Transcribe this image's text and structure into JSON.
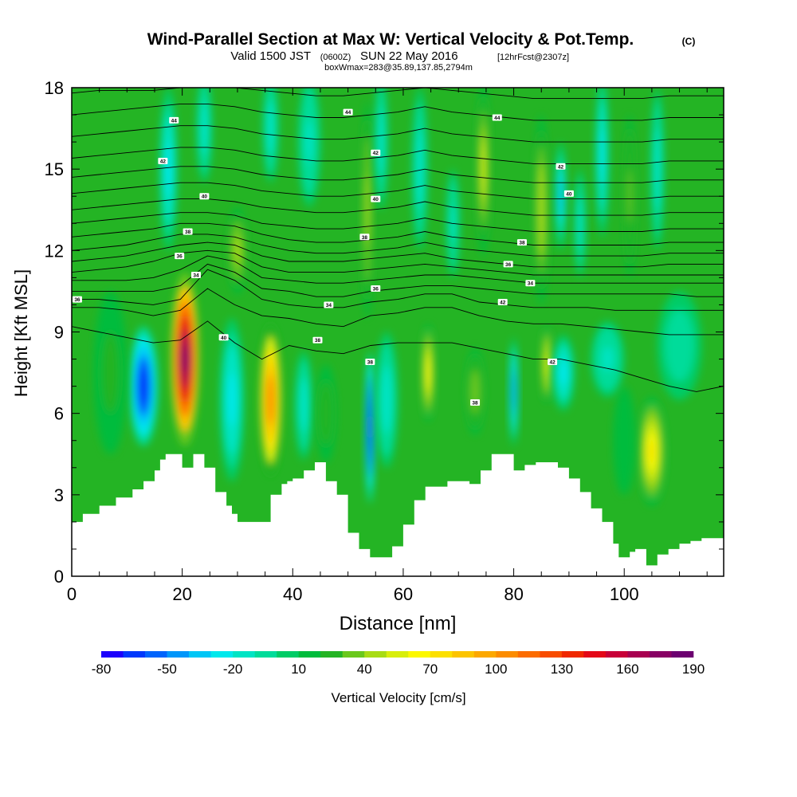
{
  "title": {
    "main": "Wind-Parallel Section at Max W: Vertical Velocity & Pot.Temp.",
    "copyright": "(C)",
    "valid_prefix": "Valid 1500 JST",
    "valid_utc": "(0600Z)",
    "valid_date": "SUN 22 May 2016",
    "forecast": "[12hrFcst@2307z]",
    "subtitle": "boxWmax=283@35.89,137.85,2794m"
  },
  "chart_data": {
    "type": "heatmap",
    "xlabel": "Distance [nm]",
    "ylabel": "Height [Kft MSL]",
    "xlim": [
      0,
      118
    ],
    "ylim": [
      0,
      18
    ],
    "x_ticks": [
      0,
      20,
      40,
      60,
      80,
      100
    ],
    "y_ticks": [
      0,
      3,
      6,
      9,
      12,
      15,
      18
    ],
    "colorbar": {
      "label": "Vertical Velocity [cm/s]",
      "tick_labels": [
        "-80",
        "-50",
        "-20",
        "10",
        "40",
        "70",
        "100",
        "130",
        "160",
        "190"
      ],
      "levels": [
        -80,
        -70,
        -60,
        -50,
        -40,
        -30,
        -20,
        -10,
        0,
        10,
        20,
        30,
        40,
        50,
        60,
        70,
        80,
        90,
        100,
        110,
        120,
        130,
        140,
        150,
        160,
        170,
        180,
        190
      ],
      "colors": [
        "#1c00fc",
        "#0038fc",
        "#0064fc",
        "#0096fa",
        "#00c6f6",
        "#00e8ec",
        "#00e4c4",
        "#00dc9a",
        "#00cc66",
        "#00bc3c",
        "#24b424",
        "#6ac81c",
        "#a8dc14",
        "#d8ee0c",
        "#fcf800",
        "#fce000",
        "#fcc400",
        "#fca800",
        "#fc8c00",
        "#fc6c00",
        "#f84c00",
        "#f02800",
        "#e40818",
        "#c80038",
        "#a80050",
        "#880064",
        "#6c0070"
      ]
    },
    "terrain_profile": {
      "x": [
        0,
        2,
        5,
        8,
        11,
        13,
        15,
        16,
        17,
        18,
        20,
        22,
        24,
        26,
        28,
        29,
        30,
        32,
        34,
        36,
        38,
        39,
        40,
        42,
        44,
        46,
        48,
        50,
        52,
        54,
        56,
        58,
        60,
        62,
        64,
        68,
        72,
        74,
        76,
        78,
        80,
        82,
        84,
        86,
        88,
        90,
        92,
        94,
        96,
        98,
        99,
        101,
        102,
        104,
        106,
        108,
        110,
        112,
        114,
        118
      ],
      "height": [
        2.0,
        2.3,
        2.6,
        2.9,
        3.2,
        3.5,
        3.9,
        4.3,
        4.5,
        4.5,
        4.0,
        4.5,
        4.0,
        3.1,
        2.6,
        2.3,
        2.0,
        2.0,
        2.0,
        3.0,
        3.4,
        3.5,
        3.6,
        3.9,
        4.2,
        3.5,
        3.0,
        1.6,
        1.0,
        0.7,
        0.7,
        1.1,
        1.9,
        2.8,
        3.3,
        3.5,
        3.4,
        3.9,
        4.5,
        4.5,
        3.9,
        4.1,
        4.2,
        4.2,
        4.0,
        3.6,
        3.1,
        2.5,
        2.0,
        1.2,
        0.7,
        0.9,
        1.0,
        0.4,
        0.8,
        1.0,
        1.2,
        1.3,
        1.4,
        1.4
      ]
    },
    "velocity_cells": [
      {
        "x": 13,
        "y": 7.0,
        "rx": 2.6,
        "ry": 2.2,
        "w": -70
      },
      {
        "x": 7,
        "y": 7.5,
        "rx": 3.0,
        "ry": 3.0,
        "w": 25
      },
      {
        "x": 20.5,
        "y": 8.0,
        "rx": 2.6,
        "ry": 3.2,
        "w": 185
      },
      {
        "x": 29,
        "y": 6.5,
        "rx": 2.2,
        "ry": 3.0,
        "w": -25
      },
      {
        "x": 36,
        "y": 6.5,
        "rx": 2.0,
        "ry": 2.8,
        "w": 110
      },
      {
        "x": 42,
        "y": 6.3,
        "rx": 1.6,
        "ry": 2.0,
        "w": -20
      },
      {
        "x": 46,
        "y": 6.0,
        "rx": 1.8,
        "ry": 1.8,
        "w": 30
      },
      {
        "x": 54,
        "y": 5.5,
        "rx": 0.9,
        "ry": 2.8,
        "w": -75
      },
      {
        "x": 57,
        "y": 6.5,
        "rx": 2.0,
        "ry": 2.5,
        "w": -20
      },
      {
        "x": 64.5,
        "y": 7.5,
        "rx": 1.1,
        "ry": 1.8,
        "w": 70
      },
      {
        "x": 73,
        "y": 6.8,
        "rx": 1.6,
        "ry": 1.6,
        "w": 40
      },
      {
        "x": 80,
        "y": 6.8,
        "rx": 0.8,
        "ry": 2.0,
        "w": -50
      },
      {
        "x": 86,
        "y": 7.8,
        "rx": 1.0,
        "ry": 1.4,
        "w": 60
      },
      {
        "x": 89,
        "y": 7.5,
        "rx": 2.0,
        "ry": 1.4,
        "w": -25
      },
      {
        "x": 105,
        "y": 4.6,
        "rx": 2.4,
        "ry": 2.0,
        "w": 72
      },
      {
        "x": 100,
        "y": 5.0,
        "rx": 2.0,
        "ry": 2.0,
        "w": 10
      },
      {
        "x": 97,
        "y": 8.0,
        "rx": 3.0,
        "ry": 1.4,
        "w": -15
      },
      {
        "x": 110,
        "y": 8.5,
        "rx": 4.0,
        "ry": 2.0,
        "w": -10
      },
      {
        "x": 17.5,
        "y": 15.0,
        "rx": 1.6,
        "ry": 3.0,
        "w": -25
      },
      {
        "x": 24,
        "y": 16.5,
        "rx": 1.4,
        "ry": 2.0,
        "w": -20
      },
      {
        "x": 30,
        "y": 12.0,
        "rx": 1.6,
        "ry": 1.6,
        "w": 45
      },
      {
        "x": 36,
        "y": 16.5,
        "rx": 1.4,
        "ry": 2.0,
        "w": -20
      },
      {
        "x": 43,
        "y": 16.0,
        "rx": 2.0,
        "ry": 2.4,
        "w": -15
      },
      {
        "x": 53.5,
        "y": 13.5,
        "rx": 0.9,
        "ry": 4.0,
        "w": 45
      },
      {
        "x": 56,
        "y": 16.0,
        "rx": 1.2,
        "ry": 2.5,
        "w": -20
      },
      {
        "x": 63,
        "y": 15.0,
        "rx": 1.4,
        "ry": 3.0,
        "w": -20
      },
      {
        "x": 69,
        "y": 13.0,
        "rx": 1.2,
        "ry": 2.0,
        "w": -15
      },
      {
        "x": 74.5,
        "y": 15.0,
        "rx": 1.1,
        "ry": 3.2,
        "w": 55
      },
      {
        "x": 85,
        "y": 13.5,
        "rx": 1.2,
        "ry": 3.5,
        "w": 50
      },
      {
        "x": 88.5,
        "y": 14.0,
        "rx": 1.0,
        "ry": 2.0,
        "w": -35
      },
      {
        "x": 92,
        "y": 13.0,
        "rx": 1.0,
        "ry": 2.0,
        "w": -20
      },
      {
        "x": 96,
        "y": 15.5,
        "rx": 1.2,
        "ry": 3.0,
        "w": -25
      },
      {
        "x": 101,
        "y": 14.0,
        "rx": 1.0,
        "ry": 3.0,
        "w": 35
      },
      {
        "x": 106,
        "y": 15.0,
        "rx": 1.2,
        "ry": 3.0,
        "w": -20
      }
    ],
    "theta_contours": [
      {
        "y": [
          9.2,
          9.0,
          8.8,
          8.6,
          8.7,
          9.4,
          8.6,
          8.0,
          8.5,
          8.3,
          8.2,
          8.5,
          8.6,
          8.6,
          8.6,
          8.4,
          8.2,
          8.0,
          8.0,
          7.8,
          7.6,
          7.3,
          7.0,
          6.8,
          7.0
        ]
      },
      {
        "y": [
          9.9,
          9.9,
          9.8,
          9.6,
          9.8,
          10.6,
          10.0,
          9.6,
          9.5,
          9.3,
          9.2,
          9.6,
          9.7,
          9.9,
          9.9,
          9.6,
          9.4,
          9.3,
          9.3,
          9.2,
          9.1,
          9.0,
          8.9,
          8.9,
          8.9
        ]
      },
      {
        "y": [
          10.2,
          10.2,
          10.1,
          10.0,
          10.2,
          11.3,
          10.9,
          10.2,
          10.0,
          9.9,
          9.9,
          10.1,
          10.2,
          10.4,
          10.4,
          10.1,
          10.0,
          9.9,
          9.9,
          9.9,
          9.8,
          9.8,
          9.8,
          9.8,
          9.8
        ]
      },
      {
        "y": [
          10.5,
          10.5,
          10.5,
          10.5,
          10.7,
          11.5,
          11.2,
          10.6,
          10.5,
          10.3,
          10.3,
          10.5,
          10.6,
          10.7,
          10.7,
          10.6,
          10.5,
          10.4,
          10.4,
          10.4,
          10.4,
          10.4,
          10.4,
          10.3,
          10.3
        ]
      },
      {
        "y": [
          10.9,
          10.9,
          10.9,
          11.0,
          11.3,
          11.8,
          11.6,
          11.0,
          10.9,
          10.8,
          10.8,
          10.9,
          11.0,
          11.1,
          11.1,
          11.0,
          10.9,
          10.8,
          10.8,
          10.8,
          10.8,
          10.8,
          10.8,
          10.8,
          10.8
        ]
      },
      {
        "y": [
          11.2,
          11.3,
          11.4,
          11.6,
          11.9,
          12.0,
          11.9,
          11.4,
          11.2,
          11.2,
          11.2,
          11.3,
          11.4,
          11.5,
          11.4,
          11.3,
          11.2,
          11.1,
          11.1,
          11.1,
          11.1,
          11.1,
          11.1,
          11.1,
          11.1
        ]
      },
      {
        "y": [
          11.6,
          11.7,
          11.8,
          12.0,
          12.2,
          12.3,
          12.2,
          11.8,
          11.6,
          11.6,
          11.6,
          11.7,
          11.8,
          11.9,
          11.7,
          11.6,
          11.5,
          11.4,
          11.4,
          11.4,
          11.4,
          11.4,
          11.5,
          11.5,
          11.5
        ]
      },
      {
        "y": [
          12.0,
          12.1,
          12.2,
          12.4,
          12.6,
          12.6,
          12.5,
          12.2,
          12.0,
          11.9,
          11.9,
          12.0,
          12.1,
          12.3,
          12.1,
          12.0,
          11.9,
          11.8,
          11.8,
          11.8,
          11.8,
          11.8,
          11.9,
          11.9,
          11.9
        ]
      },
      {
        "y": [
          12.5,
          12.6,
          12.7,
          12.8,
          13.0,
          13.0,
          12.9,
          12.6,
          12.4,
          12.3,
          12.3,
          12.4,
          12.5,
          12.7,
          12.5,
          12.4,
          12.3,
          12.2,
          12.2,
          12.2,
          12.2,
          12.2,
          12.3,
          12.3,
          12.3
        ]
      },
      {
        "y": [
          13.0,
          13.1,
          13.2,
          13.3,
          13.4,
          13.4,
          13.3,
          13.0,
          12.9,
          12.8,
          12.8,
          12.9,
          13.0,
          13.2,
          13.0,
          12.9,
          12.8,
          12.7,
          12.7,
          12.7,
          12.7,
          12.7,
          12.8,
          12.8,
          12.8
        ]
      },
      {
        "y": [
          13.5,
          13.6,
          13.7,
          13.8,
          13.9,
          13.9,
          13.8,
          13.6,
          13.5,
          13.4,
          13.4,
          13.5,
          13.6,
          13.8,
          13.6,
          13.5,
          13.4,
          13.3,
          13.3,
          13.3,
          13.3,
          13.3,
          13.4,
          13.4,
          13.4
        ]
      },
      {
        "y": [
          14.1,
          14.2,
          14.3,
          14.4,
          14.5,
          14.5,
          14.4,
          14.2,
          14.1,
          14.0,
          14.0,
          14.1,
          14.2,
          14.4,
          14.2,
          14.1,
          14.0,
          13.9,
          13.9,
          13.9,
          13.9,
          13.9,
          14.0,
          14.0,
          14.0
        ]
      },
      {
        "y": [
          14.7,
          14.8,
          14.9,
          15.0,
          15.1,
          15.1,
          15.0,
          14.8,
          14.7,
          14.6,
          14.6,
          14.7,
          14.8,
          15.0,
          14.8,
          14.7,
          14.6,
          14.5,
          14.5,
          14.5,
          14.5,
          14.5,
          14.6,
          14.6,
          14.6
        ]
      },
      {
        "y": [
          15.4,
          15.5,
          15.6,
          15.7,
          15.8,
          15.8,
          15.7,
          15.5,
          15.4,
          15.3,
          15.3,
          15.4,
          15.5,
          15.7,
          15.5,
          15.4,
          15.3,
          15.2,
          15.2,
          15.2,
          15.2,
          15.2,
          15.3,
          15.3,
          15.3
        ]
      },
      {
        "y": [
          16.2,
          16.3,
          16.4,
          16.5,
          16.6,
          16.6,
          16.5,
          16.3,
          16.2,
          16.1,
          16.1,
          16.2,
          16.3,
          16.5,
          16.3,
          16.2,
          16.1,
          16.0,
          16.0,
          16.0,
          16.0,
          16.0,
          16.1,
          16.1,
          16.1
        ]
      },
      {
        "y": [
          17.0,
          17.1,
          17.2,
          17.3,
          17.4,
          17.4,
          17.3,
          17.1,
          17.0,
          16.9,
          16.9,
          17.0,
          17.1,
          17.3,
          17.1,
          17.0,
          16.9,
          16.8,
          16.8,
          16.8,
          16.8,
          16.8,
          16.9,
          16.9,
          16.9
        ]
      },
      {
        "y": [
          17.8,
          17.9,
          17.9,
          17.9,
          18.0,
          18.0,
          18.0,
          17.9,
          17.8,
          17.7,
          17.7,
          17.8,
          17.9,
          18.0,
          17.9,
          17.8,
          17.7,
          17.6,
          17.6,
          17.6,
          17.6,
          17.6,
          17.7,
          17.7,
          17.7
        ]
      }
    ],
    "contour_labels": [
      {
        "text": "36",
        "x": 1,
        "y": 10.2
      },
      {
        "text": "44",
        "x": 18.5,
        "y": 16.8
      },
      {
        "text": "42",
        "x": 16.5,
        "y": 15.3
      },
      {
        "text": "40",
        "x": 24,
        "y": 14.0
      },
      {
        "text": "38",
        "x": 21,
        "y": 12.7
      },
      {
        "text": "36",
        "x": 19.5,
        "y": 11.8
      },
      {
        "text": "34",
        "x": 22.5,
        "y": 11.1
      },
      {
        "text": "40",
        "x": 27.5,
        "y": 8.8
      },
      {
        "text": "44",
        "x": 50,
        "y": 17.1
      },
      {
        "text": "42",
        "x": 55,
        "y": 15.6
      },
      {
        "text": "40",
        "x": 55,
        "y": 13.9
      },
      {
        "text": "38",
        "x": 53,
        "y": 12.5
      },
      {
        "text": "36",
        "x": 55,
        "y": 10.6
      },
      {
        "text": "34",
        "x": 46.5,
        "y": 10.0
      },
      {
        "text": "38",
        "x": 44.5,
        "y": 8.7
      },
      {
        "text": "38",
        "x": 54,
        "y": 7.9
      },
      {
        "text": "38",
        "x": 73,
        "y": 6.4
      },
      {
        "text": "44",
        "x": 77,
        "y": 16.9
      },
      {
        "text": "42",
        "x": 88.5,
        "y": 15.1
      },
      {
        "text": "40",
        "x": 90,
        "y": 14.1
      },
      {
        "text": "38",
        "x": 81.5,
        "y": 12.3
      },
      {
        "text": "36",
        "x": 79,
        "y": 11.5
      },
      {
        "text": "34",
        "x": 83,
        "y": 10.8
      },
      {
        "text": "42",
        "x": 78,
        "y": 10.1
      },
      {
        "text": "42",
        "x": 87,
        "y": 7.9
      }
    ]
  }
}
